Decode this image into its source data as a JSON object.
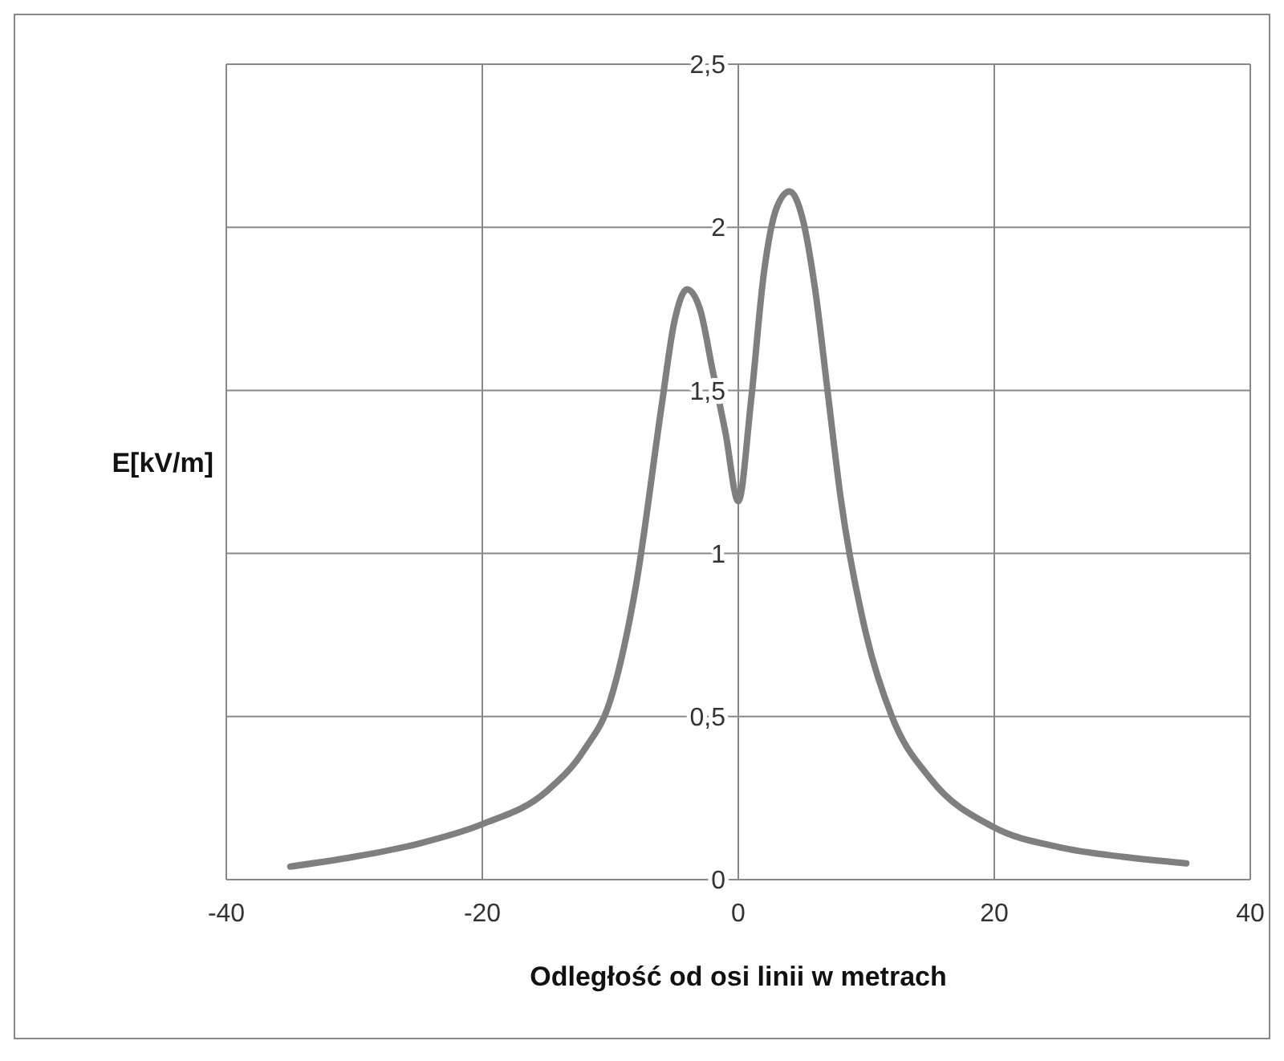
{
  "chart_data": {
    "type": "line",
    "xlabel": "Odległość od osi linii w metrach",
    "ylabel": "E[kV/m]",
    "x": [
      -35,
      -30,
      -25,
      -20,
      -15,
      -12,
      -10,
      -8,
      -6,
      -5,
      -4,
      -3,
      -2,
      -1,
      0,
      1,
      2,
      3,
      4,
      5,
      6,
      7,
      8,
      10,
      12,
      15,
      20,
      25,
      30,
      35
    ],
    "series": [
      {
        "color": "#7f7f7f",
        "values": [
          0.04,
          0.07,
          0.11,
          0.17,
          0.27,
          0.4,
          0.55,
          0.9,
          1.45,
          1.71,
          1.81,
          1.75,
          1.56,
          1.37,
          1.16,
          1.47,
          1.86,
          2.06,
          2.11,
          2.03,
          1.81,
          1.49,
          1.17,
          0.75,
          0.5,
          0.31,
          0.16,
          0.1,
          0.07,
          0.05
        ]
      }
    ],
    "xlim": [
      -40,
      40
    ],
    "xticks": [
      -40,
      -20,
      0,
      20,
      40
    ],
    "ylim": [
      0,
      2.5
    ],
    "yticks": [
      0,
      {
        "value": 0.5,
        "label": "0,5"
      },
      1,
      {
        "value": 1.5,
        "label": "1,5"
      },
      2,
      {
        "value": 2.5,
        "label": "2,5"
      }
    ],
    "grid": true,
    "marker": "none",
    "line_style": "solid"
  }
}
